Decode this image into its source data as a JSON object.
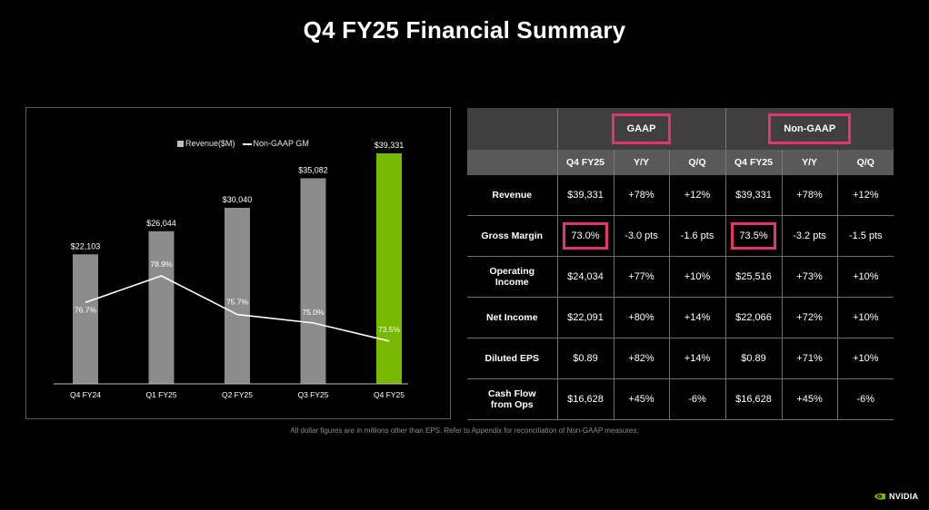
{
  "title": "Q4 FY25 Financial Summary",
  "legend": {
    "bar_label": "Revenue($M)",
    "line_label": "Non-GAAP GM"
  },
  "chart_data": {
    "type": "bar",
    "categories": [
      "Q4 FY24",
      "Q1 FY25",
      "Q2 FY25",
      "Q3 FY25",
      "Q4 FY25"
    ],
    "series": [
      {
        "name": "Revenue($M)",
        "type": "bar",
        "values": [
          22103,
          26044,
          30040,
          35082,
          39331
        ],
        "labels": [
          "$22,103",
          "$26,044",
          "$30,040",
          "$35,082",
          "$39,331"
        ]
      },
      {
        "name": "Non-GAAP GM",
        "type": "line",
        "values": [
          76.7,
          78.9,
          75.7,
          75.0,
          73.5
        ],
        "labels": [
          "76.7%",
          "78.9%",
          "75.7%",
          "75.0%",
          "73.5%"
        ]
      }
    ],
    "colors": {
      "bar": "#8c8c8c",
      "highlight_bar": "#76b900",
      "line": "#ffffff"
    },
    "highlight_index": 4,
    "legend_position": "top-center",
    "grid": false
  },
  "table": {
    "group_headers": [
      "GAAP",
      "Non-GAAP"
    ],
    "columns": [
      "Q4 FY25",
      "Y/Y",
      "Q/Q",
      "Q4 FY25",
      "Y/Y",
      "Q/Q"
    ],
    "rows": [
      {
        "label": [
          "Revenue"
        ],
        "values": [
          "$39,331",
          "+78%",
          "+12%",
          "$39,331",
          "+78%",
          "+12%"
        ]
      },
      {
        "label": [
          "Gross Margin"
        ],
        "values": [
          "73.0%",
          "-3.0 pts",
          "-1.6 pts",
          "73.5%",
          "-3.2 pts",
          "-1.5 pts"
        ]
      },
      {
        "label": [
          "Operating",
          "Income"
        ],
        "values": [
          "$24,034",
          "+77%",
          "+10%",
          "$25,516",
          "+73%",
          "+10%"
        ]
      },
      {
        "label": [
          "Net Income"
        ],
        "values": [
          "$22,091",
          "+80%",
          "+14%",
          "$22,066",
          "+72%",
          "+10%"
        ]
      },
      {
        "label": [
          "Diluted EPS"
        ],
        "values": [
          "$0.89",
          "+82%",
          "+14%",
          "$0.89",
          "+71%",
          "+10%"
        ]
      },
      {
        "label": [
          "Cash Flow",
          "from Ops"
        ],
        "values": [
          "$16,628",
          "+45%",
          "-6%",
          "$16,628",
          "+45%",
          "-6%"
        ]
      }
    ],
    "accent": "#e6326e"
  },
  "footnote": "All dollar figures are in millions other than EPS. Refer to Appendix for reconciliation of Non-GAAP measures.",
  "logo": {
    "text": "NVIDIA",
    "icon": "nvidia-eye-icon",
    "color": "#76b900"
  }
}
